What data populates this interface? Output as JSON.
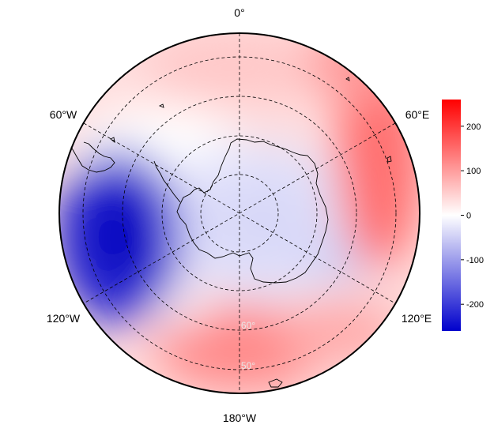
{
  "map": {
    "projection": "south-polar-stereographic",
    "lon_labels": [
      {
        "id": "0",
        "text": "0°"
      },
      {
        "id": "60E",
        "text": "60°E"
      },
      {
        "id": "120E",
        "text": "120°E"
      },
      {
        "id": "180",
        "text": "180°W"
      },
      {
        "id": "120W",
        "text": "120°W"
      },
      {
        "id": "60W",
        "text": "60°W"
      }
    ],
    "lat_labels": [
      {
        "id": "lat60",
        "text": "60°"
      },
      {
        "id": "lat50",
        "text": "50°"
      }
    ]
  },
  "colorbar": {
    "min": -260,
    "max": 260,
    "ticks": [
      {
        "value": 200,
        "text": "200"
      },
      {
        "value": 100,
        "text": "100"
      },
      {
        "value": 0,
        "text": "0"
      },
      {
        "value": -100,
        "text": "-100"
      },
      {
        "value": -200,
        "text": "-200"
      }
    ],
    "colors": {
      "low": "#0000cc",
      "mid": "#ffffff",
      "high": "#ff0000"
    }
  }
}
